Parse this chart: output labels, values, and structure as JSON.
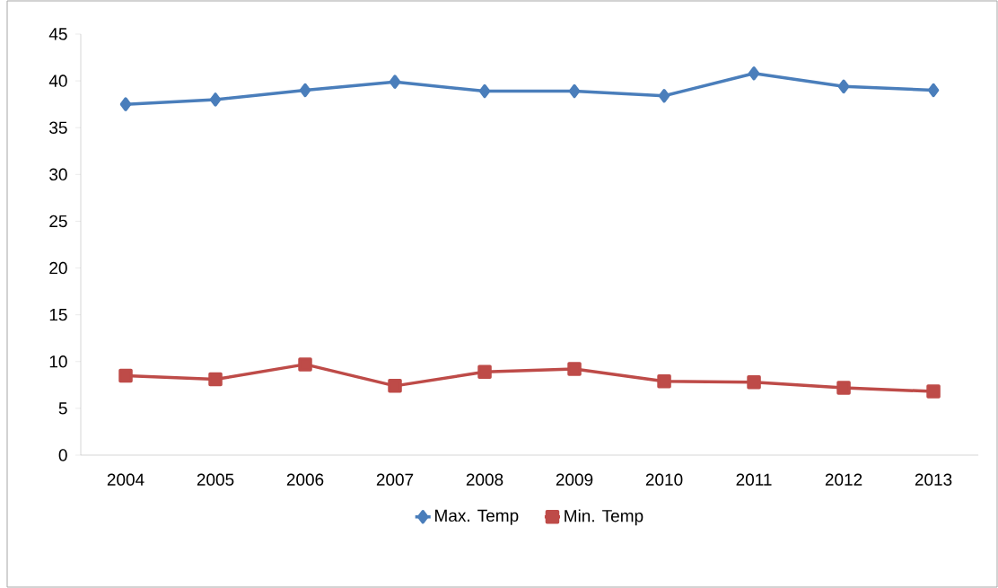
{
  "chart_data": {
    "type": "line",
    "categories": [
      "2004",
      "2005",
      "2006",
      "2007",
      "2008",
      "2009",
      "2010",
      "2011",
      "2012",
      "2013"
    ],
    "series": [
      {
        "name": "Max. Temp",
        "color": "#4a7ebb",
        "marker": "diamond",
        "values": [
          37.5,
          38.0,
          39.0,
          39.9,
          38.9,
          38.9,
          38.4,
          40.8,
          39.4,
          39.0
        ]
      },
      {
        "name": "Min. Temp",
        "color": "#be4b48",
        "marker": "square",
        "values": [
          8.5,
          8.1,
          9.7,
          7.4,
          8.9,
          9.2,
          7.9,
          7.8,
          7.2,
          6.8
        ]
      }
    ],
    "ylim": [
      0,
      45
    ],
    "yticks": [
      0,
      5,
      10,
      15,
      20,
      25,
      30,
      35,
      40,
      45
    ],
    "grid": false,
    "legend": "bottom",
    "line_style": "solid"
  }
}
